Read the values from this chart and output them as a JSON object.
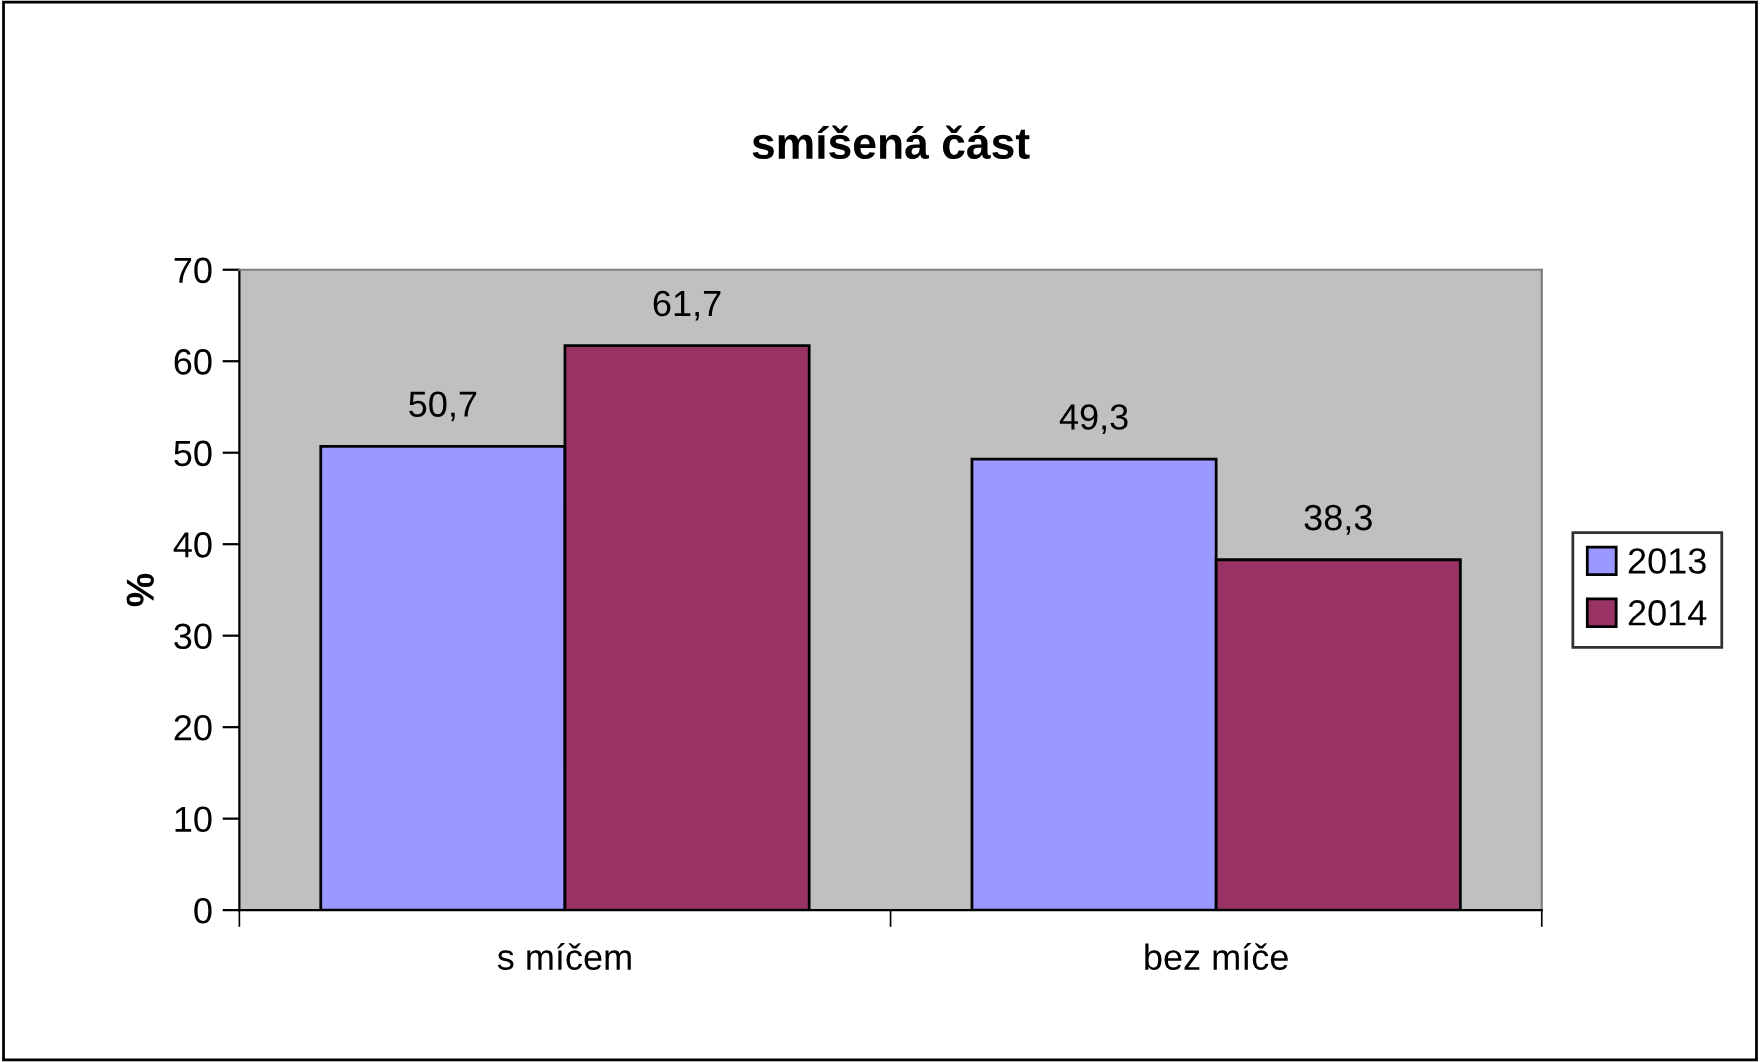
{
  "chart_data": {
    "type": "bar",
    "title": "smíšená část",
    "ylabel": "%",
    "categories": [
      "s míčem",
      "bez míče"
    ],
    "series": [
      {
        "name": "2013",
        "color": "#9999ff",
        "values": [
          50.7,
          49.3
        ],
        "value_labels": [
          "50,7",
          "49,3"
        ]
      },
      {
        "name": "2014",
        "color": "#993366",
        "values": [
          61.7,
          38.3
        ],
        "value_labels": [
          "61,7",
          "38,3"
        ]
      }
    ],
    "ylim": [
      0,
      70
    ],
    "yticks": [
      0,
      10,
      20,
      30,
      40,
      50,
      60,
      70
    ],
    "grid": false,
    "legend": "right"
  }
}
